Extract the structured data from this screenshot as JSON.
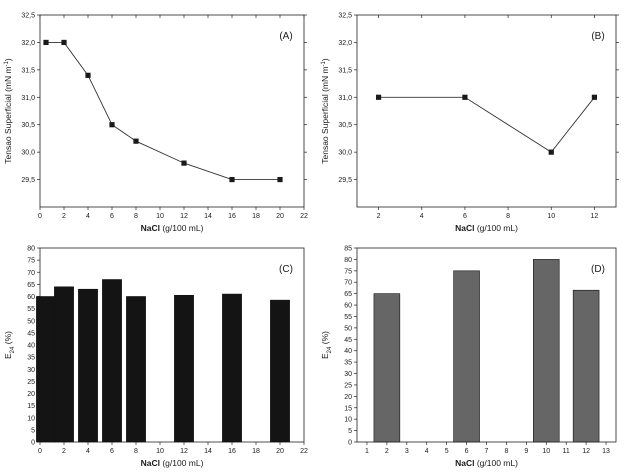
{
  "chart_data": [
    {
      "id": "A",
      "type": "line",
      "panel_label": "(A)",
      "xlabel_main": "NaCl",
      "xlabel_unit": " (g/100 mL)",
      "ylabel": "Tensao Superficial (mN m",
      "ylabel_sup": "-1",
      "ylabel_end": ")",
      "xlim": [
        0,
        22
      ],
      "ylim": [
        29,
        32.5
      ],
      "xticks": [
        0,
        2,
        4,
        6,
        8,
        10,
        12,
        14,
        16,
        18,
        20,
        22
      ],
      "yticks": [
        29.5,
        30.0,
        30.5,
        31.0,
        31.5,
        32.0,
        32.5
      ],
      "ytick_labels": [
        "29,5",
        "30,0",
        "30,5",
        "31,0",
        "31,5",
        "32,0",
        "32,5"
      ],
      "x": [
        0.5,
        2,
        4,
        6,
        8,
        12,
        16,
        20
      ],
      "y": [
        32.0,
        32.0,
        31.4,
        30.5,
        30.2,
        29.8,
        29.5,
        29.5
      ],
      "color": "#1a1a1a"
    },
    {
      "id": "B",
      "type": "line",
      "panel_label": "(B)",
      "xlabel_main": "NaCl",
      "xlabel_unit": " (g/100 mL)",
      "ylabel": "Tensao Superficial (mN m",
      "ylabel_sup": "-1",
      "ylabel_end": ")",
      "xlim": [
        1,
        13
      ],
      "ylim": [
        29,
        32.5
      ],
      "xticks": [
        2,
        4,
        6,
        8,
        10,
        12
      ],
      "yticks": [
        29.5,
        30.0,
        30.5,
        31.0,
        31.5,
        32.0,
        32.5
      ],
      "ytick_labels": [
        "29,5",
        "30,0",
        "30,5",
        "31,0",
        "31,5",
        "32,0",
        "32,5"
      ],
      "x": [
        2,
        6,
        10,
        12
      ],
      "y": [
        31.0,
        31.0,
        30.0,
        31.0
      ],
      "color": "#1a1a1a"
    },
    {
      "id": "C",
      "type": "bar",
      "panel_label": "(C)",
      "xlabel_main": "NaCl",
      "xlabel_unit": " (g/100 mL)",
      "ylabel": "E",
      "ylabel_sub": "24",
      "ylabel_end": " (%)",
      "xlim": [
        0,
        22
      ],
      "ylim": [
        0,
        80
      ],
      "xticks": [
        0,
        2,
        4,
        6,
        8,
        10,
        12,
        14,
        16,
        18,
        20,
        22
      ],
      "yticks": [
        0,
        5,
        10,
        15,
        20,
        25,
        30,
        35,
        40,
        45,
        50,
        55,
        60,
        65,
        70,
        75,
        80
      ],
      "x": [
        0.5,
        2,
        4,
        6,
        8,
        12,
        16,
        20
      ],
      "values": [
        60,
        64,
        63,
        67,
        60,
        60.5,
        61,
        58.5
      ],
      "bar_width": 1.6,
      "color": "#141414"
    },
    {
      "id": "D",
      "type": "bar",
      "panel_label": "(D)",
      "xlabel_main": "NaCl",
      "xlabel_unit": " (g/100 mL)",
      "ylabel": "E",
      "ylabel_sub": "24",
      "ylabel_end": " (%)",
      "xlim": [
        0.5,
        13.5
      ],
      "ylim": [
        0,
        85
      ],
      "xticks": [
        1,
        2,
        3,
        4,
        5,
        6,
        7,
        8,
        9,
        10,
        11,
        12,
        13
      ],
      "yticks": [
        0,
        5,
        10,
        15,
        20,
        25,
        30,
        35,
        40,
        45,
        50,
        55,
        60,
        65,
        70,
        75,
        80,
        85
      ],
      "x": [
        2,
        6,
        10,
        12
      ],
      "values": [
        65,
        75,
        80,
        66.5
      ],
      "bar_width": 1.3,
      "color": "#666666"
    }
  ]
}
